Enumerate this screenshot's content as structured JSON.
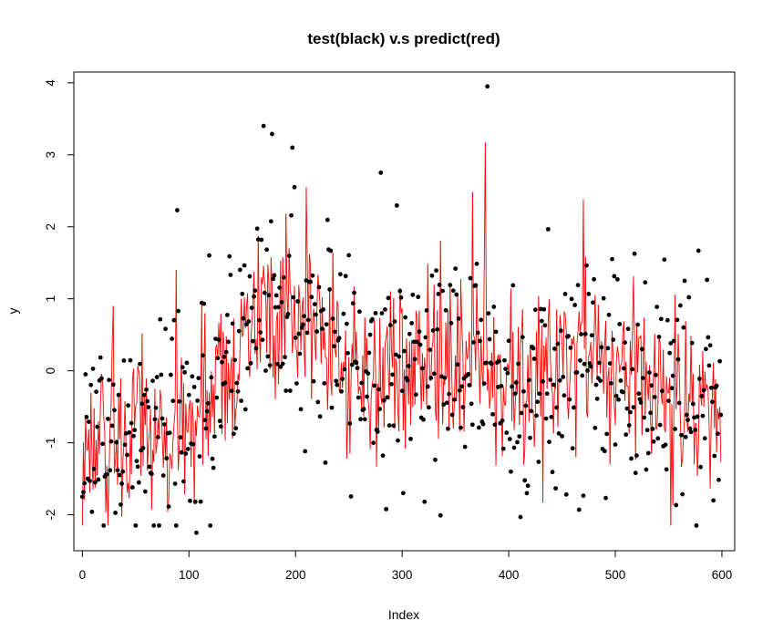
{
  "chart_data": {
    "type": "scatter",
    "title": "test(black) v.s predict(red)",
    "xlabel": "Index",
    "ylabel": "y",
    "xlim": [
      -8,
      612
    ],
    "ylim": [
      -2.5,
      4.15
    ],
    "x_ticks": [
      "0",
      "100",
      "200",
      "300",
      "400",
      "500",
      "600"
    ],
    "y_ticks": [
      "-2",
      "-1",
      "0",
      "1",
      "2",
      "3",
      "4"
    ],
    "n_points": 600,
    "grid": false,
    "legend": "none",
    "series": [
      {
        "style": "points",
        "color": "#000000",
        "trend_knots": [
          [
            0,
            -0.9
          ],
          [
            40,
            -1.05
          ],
          [
            80,
            -0.8
          ],
          [
            110,
            -0.6
          ],
          [
            140,
            0.0
          ],
          [
            160,
            0.9
          ],
          [
            180,
            1.05
          ],
          [
            200,
            0.6
          ],
          [
            230,
            0.45
          ],
          [
            260,
            0.1
          ],
          [
            300,
            0.25
          ],
          [
            340,
            0.25
          ],
          [
            380,
            0.1
          ],
          [
            420,
            -0.45
          ],
          [
            450,
            0.0
          ],
          [
            480,
            0.1
          ],
          [
            520,
            -0.05
          ],
          [
            560,
            -0.3
          ],
          [
            600,
            -0.45
          ]
        ],
        "noise_sd": 0.8,
        "highlights": [
          [
            0,
            -1.75
          ],
          [
            3,
            -0.05
          ],
          [
            5,
            -1.5
          ],
          [
            89,
            2.23
          ],
          [
            107,
            -2.25
          ],
          [
            170,
            3.4
          ],
          [
            178,
            3.29
          ],
          [
            197,
            3.1
          ],
          [
            199,
            2.55
          ],
          [
            380,
            3.95
          ],
          [
            417,
            -1.7
          ],
          [
            301,
            -1.7
          ]
        ]
      },
      {
        "style": "line",
        "color": "#ff0000",
        "trend_knots": [
          [
            0,
            -0.9
          ],
          [
            40,
            -1.05
          ],
          [
            80,
            -0.8
          ],
          [
            110,
            -0.6
          ],
          [
            140,
            0.0
          ],
          [
            160,
            0.9
          ],
          [
            180,
            1.05
          ],
          [
            200,
            0.6
          ],
          [
            230,
            0.45
          ],
          [
            260,
            0.1
          ],
          [
            300,
            0.25
          ],
          [
            340,
            0.25
          ],
          [
            380,
            0.1
          ],
          [
            420,
            -0.45
          ],
          [
            450,
            0.0
          ],
          [
            480,
            0.1
          ],
          [
            520,
            -0.05
          ],
          [
            560,
            -0.3
          ],
          [
            600,
            -0.45
          ]
        ],
        "noise_sd": 0.62,
        "highlights": [
          [
            29,
            0.9
          ],
          [
            88,
            1.4
          ],
          [
            210,
            2.55
          ],
          [
            378,
            3.17
          ],
          [
            366,
            2.48
          ],
          [
            470,
            2.38
          ],
          [
            599,
            -1.27
          ]
        ]
      }
    ]
  }
}
